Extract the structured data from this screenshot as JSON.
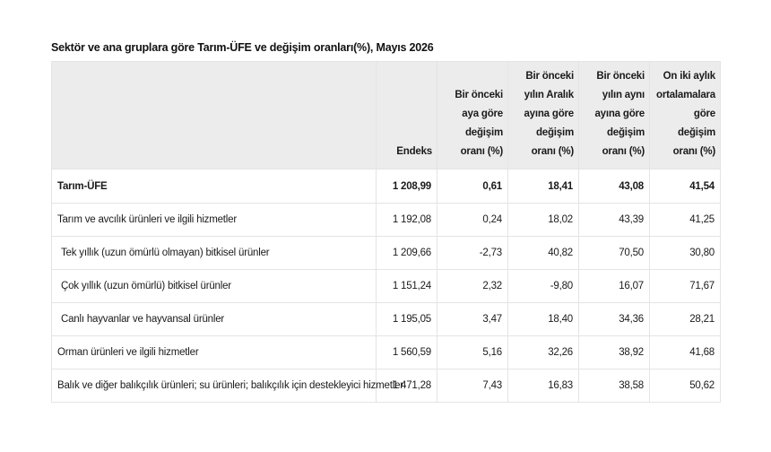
{
  "title": "Sektör ve ana gruplara göre Tarım-ÜFE ve değişim oranları(%), Mayıs 2026",
  "table": {
    "headers": [
      "",
      "Endeks",
      "Bir önceki aya göre değişim oranı (%)",
      "Bir önceki yılın Aralık ayına göre değişim oranı (%)",
      "Bir önceki yılın aynı ayına göre değişim oranı (%)",
      "On iki aylık ortalamalara göre değişim oranı (%)"
    ],
    "rows": [
      {
        "label": "Tarım-ÜFE",
        "endeks": "1 208,99",
        "monthly": "0,61",
        "december": "18,41",
        "annual": "43,08",
        "avg12": "41,54"
      },
      {
        "label": "Tarım ve avcılık ürünleri ve ilgili hizmetler",
        "endeks": "1 192,08",
        "monthly": "0,24",
        "december": "18,02",
        "annual": "43,39",
        "avg12": "41,25"
      },
      {
        "label": "Tek yıllık (uzun ömürlü olmayan) bitkisel ürünler",
        "endeks": "1 209,66",
        "monthly": "-2,73",
        "december": "40,82",
        "annual": "70,50",
        "avg12": "30,80"
      },
      {
        "label": "Çok yıllık (uzun ömürlü) bitkisel ürünler",
        "endeks": "1 151,24",
        "monthly": "2,32",
        "december": "-9,80",
        "annual": "16,07",
        "avg12": "71,67"
      },
      {
        "label": "Canlı hayvanlar ve hayvansal ürünler",
        "endeks": "1 195,05",
        "monthly": "3,47",
        "december": "18,40",
        "annual": "34,36",
        "avg12": "28,21"
      },
      {
        "label": "Orman ürünleri ve ilgili hizmetler",
        "endeks": "1 560,59",
        "monthly": "5,16",
        "december": "32,26",
        "annual": "38,92",
        "avg12": "41,68"
      },
      {
        "label": "Balık ve diğer balıkçılık ürünleri; su ürünleri; balıkçılık için destekleyici hizmetler",
        "endeks": "1 471,28",
        "monthly": "7,43",
        "december": "16,83",
        "annual": "38,58",
        "avg12": "50,62"
      }
    ]
  }
}
